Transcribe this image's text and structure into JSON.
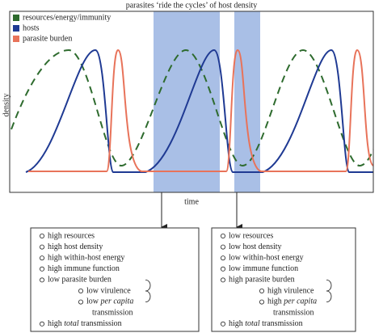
{
  "title": "parasites ‘ride the cycles’ of host density",
  "legend": [
    "resources/energy/immunity",
    "hosts",
    "parasite burden"
  ],
  "axes": {
    "y": "density",
    "x": "time"
  },
  "boxes": [
    {
      "items": [
        {
          "text": "high resources"
        },
        {
          "text": "high host density"
        },
        {
          "text": "high within-host energy"
        },
        {
          "text": "high immune function"
        },
        {
          "text": "low parasite burden",
          "subitems": [
            {
              "text": "low virulence"
            },
            {
              "before": "low ",
              "em": "per capita",
              "after": "transmission"
            }
          ]
        },
        {
          "before": "high ",
          "em": "total",
          "after": " transmission"
        }
      ]
    },
    {
      "items": [
        {
          "text": "low resources"
        },
        {
          "text": "low host density"
        },
        {
          "text": "low within-host energy"
        },
        {
          "text": "low immune function"
        },
        {
          "text": "high parasite burden",
          "subitems": [
            {
              "text": "high virulence"
            },
            {
              "before": "high ",
              "em": "per capita",
              "after": "transmission"
            }
          ]
        },
        {
          "before": "high ",
          "em": "total",
          "after": " transmission"
        }
      ]
    }
  ]
}
